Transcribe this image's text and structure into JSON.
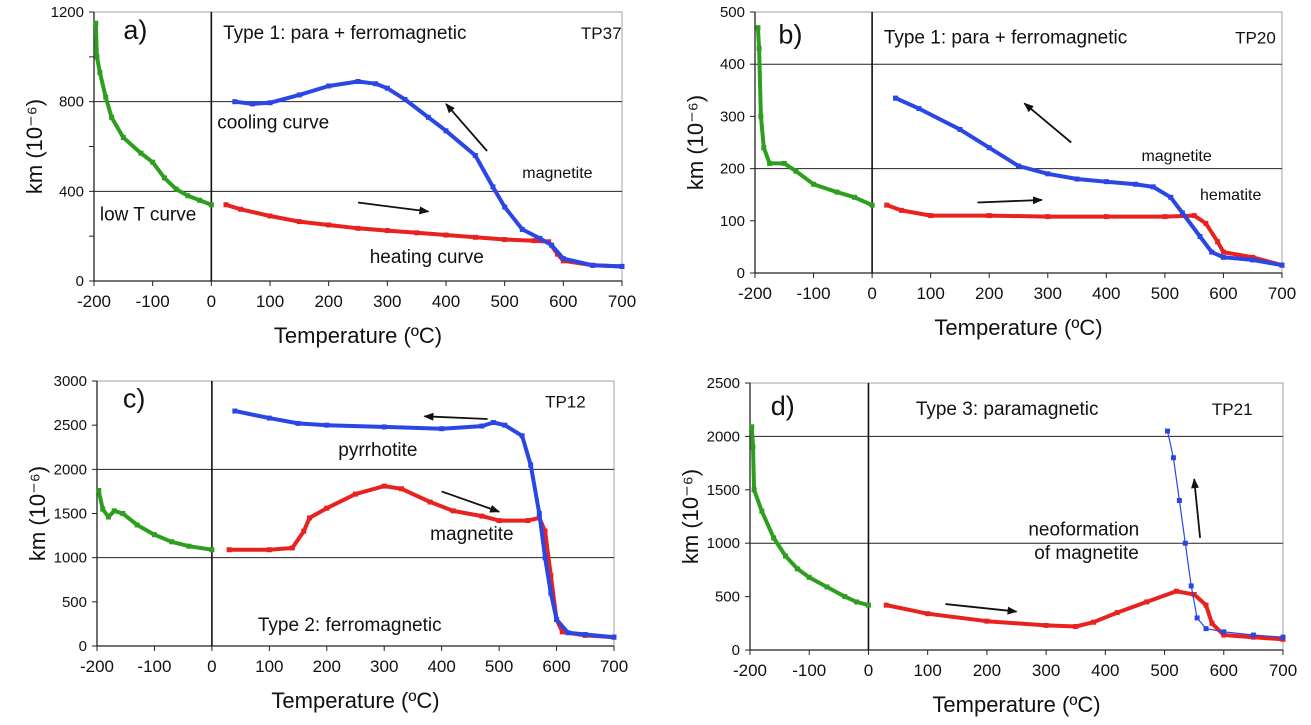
{
  "chart_data": [
    {
      "type": "line",
      "panel": "a)",
      "title": "Type 1: para + ferromagnetic",
      "sample": "TP37",
      "xlabel": "Temperature (ºC)",
      "ylabel": "km (10⁻⁶)",
      "xlim": [
        -200,
        700
      ],
      "ylim": [
        0,
        1200
      ],
      "xticks": [
        -200,
        -100,
        0,
        100,
        200,
        300,
        400,
        500,
        600,
        700
      ],
      "yticks": [
        0,
        400,
        800,
        1200
      ],
      "grid_y": [
        400,
        800
      ],
      "annotations": [
        "cooling curve",
        "magnetite",
        "low T curve",
        "heating curve"
      ],
      "colors": {
        "low_t": "#2e9e1e",
        "heating": "#e8231f",
        "cooling": "#2a47e6"
      },
      "series": [
        {
          "key": "low_t",
          "x": [
            -197,
            -195,
            -190,
            -180,
            -170,
            -150,
            -120,
            -100,
            -80,
            -60,
            -40,
            -20,
            0
          ],
          "y": [
            1150,
            1000,
            930,
            820,
            730,
            640,
            570,
            530,
            460,
            410,
            380,
            360,
            340
          ]
        },
        {
          "key": "heating",
          "x": [
            25,
            50,
            100,
            150,
            200,
            250,
            300,
            350,
            400,
            450,
            500,
            550,
            575,
            590,
            600,
            650,
            700
          ],
          "y": [
            340,
            320,
            290,
            265,
            250,
            235,
            225,
            215,
            205,
            195,
            185,
            180,
            175,
            120,
            90,
            70,
            65
          ]
        },
        {
          "key": "cooling",
          "x": [
            40,
            70,
            100,
            150,
            200,
            250,
            280,
            300,
            330,
            370,
            400,
            450,
            480,
            500,
            530,
            560,
            580,
            600,
            650,
            700
          ],
          "y": [
            800,
            790,
            795,
            830,
            870,
            890,
            880,
            860,
            810,
            730,
            670,
            560,
            420,
            330,
            230,
            190,
            160,
            100,
            70,
            65
          ]
        }
      ]
    },
    {
      "type": "line",
      "panel": "b)",
      "title": "Type 1: para + ferromagnetic",
      "sample": "TP20",
      "xlabel": "Temperature (ºC)",
      "ylabel": "km (10⁻⁶)",
      "xlim": [
        -200,
        700
      ],
      "ylim": [
        0,
        500
      ],
      "xticks": [
        -200,
        -100,
        0,
        100,
        200,
        300,
        400,
        500,
        600,
        700
      ],
      "yticks": [
        0,
        100,
        200,
        300,
        400,
        500
      ],
      "grid_y": [
        200,
        400
      ],
      "annotations": [
        "magnetite",
        "hematite"
      ],
      "colors": {
        "low_t": "#2e9e1e",
        "heating": "#e8231f",
        "cooling": "#2a47e6"
      },
      "series": [
        {
          "key": "low_t",
          "x": [
            -195,
            -193,
            -190,
            -185,
            -175,
            -150,
            -130,
            -100,
            -60,
            -30,
            0
          ],
          "y": [
            470,
            430,
            300,
            240,
            210,
            210,
            195,
            170,
            155,
            145,
            130
          ]
        },
        {
          "key": "heating",
          "x": [
            25,
            50,
            100,
            200,
            300,
            400,
            500,
            550,
            570,
            590,
            600,
            650,
            700
          ],
          "y": [
            130,
            120,
            110,
            110,
            108,
            108,
            108,
            110,
            95,
            60,
            40,
            30,
            15
          ]
        },
        {
          "key": "cooling",
          "x": [
            40,
            80,
            150,
            200,
            250,
            300,
            350,
            400,
            450,
            480,
            510,
            530,
            560,
            580,
            600,
            650,
            700
          ],
          "y": [
            335,
            315,
            275,
            240,
            205,
            190,
            180,
            175,
            170,
            165,
            145,
            115,
            70,
            40,
            30,
            25,
            15
          ]
        }
      ]
    },
    {
      "type": "line",
      "panel": "c)",
      "title": "Type 2: ferromagnetic",
      "sample": "TP12",
      "xlabel": "Temperature (ºC)",
      "ylabel": "km (10⁻⁶)",
      "xlim": [
        -200,
        700
      ],
      "ylim": [
        0,
        3000
      ],
      "xticks": [
        -200,
        -100,
        0,
        100,
        200,
        300,
        400,
        500,
        600,
        700
      ],
      "yticks": [
        0,
        500,
        1000,
        1500,
        2000,
        2500,
        3000
      ],
      "grid_y": [
        1000,
        2000
      ],
      "annotations": [
        "pyrrhotite",
        "magnetite"
      ],
      "colors": {
        "low_t": "#2e9e1e",
        "heating": "#e8231f",
        "cooling": "#2a47e6"
      },
      "series": [
        {
          "key": "low_t",
          "x": [
            -197,
            -190,
            -180,
            -170,
            -155,
            -130,
            -100,
            -70,
            -40,
            0
          ],
          "y": [
            1760,
            1550,
            1460,
            1530,
            1500,
            1370,
            1260,
            1180,
            1130,
            1090
          ]
        },
        {
          "key": "heating",
          "x": [
            30,
            100,
            140,
            160,
            170,
            200,
            250,
            300,
            330,
            380,
            420,
            470,
            500,
            550,
            570,
            580,
            590,
            600,
            610,
            650,
            700
          ],
          "y": [
            1090,
            1090,
            1110,
            1300,
            1450,
            1560,
            1720,
            1810,
            1780,
            1630,
            1530,
            1470,
            1420,
            1420,
            1450,
            1300,
            800,
            300,
            160,
            120,
            100
          ]
        },
        {
          "key": "cooling",
          "x": [
            40,
            100,
            150,
            200,
            300,
            400,
            470,
            490,
            510,
            540,
            555,
            570,
            580,
            590,
            600,
            620,
            650,
            700
          ],
          "y": [
            2660,
            2580,
            2520,
            2500,
            2480,
            2460,
            2490,
            2530,
            2500,
            2380,
            2050,
            1500,
            1000,
            600,
            300,
            150,
            130,
            100
          ]
        }
      ]
    },
    {
      "type": "line",
      "panel": "d)",
      "title": "Type 3: paramagnetic",
      "sample": "TP21",
      "xlabel": "Temperature (ºC)",
      "ylabel": "km (10⁻⁶)",
      "xlim": [
        -200,
        700
      ],
      "ylim": [
        0,
        2500
      ],
      "xticks": [
        -200,
        -100,
        0,
        100,
        200,
        300,
        400,
        500,
        600,
        700
      ],
      "yticks": [
        0,
        500,
        1000,
        1500,
        2000,
        2500
      ],
      "grid_y": [
        1000,
        2000
      ],
      "annotations": [
        "neoformation",
        "of magnetite"
      ],
      "colors": {
        "low_t": "#2e9e1e",
        "heating": "#e8231f",
        "cooling": "#2a47e6"
      },
      "series": [
        {
          "key": "low_t",
          "x": [
            -197,
            -195,
            -193,
            -180,
            -160,
            -140,
            -120,
            -100,
            -70,
            -40,
            -20,
            0
          ],
          "y": [
            2090,
            1900,
            1500,
            1300,
            1050,
            880,
            760,
            680,
            590,
            500,
            450,
            420
          ]
        },
        {
          "key": "heating",
          "x": [
            30,
            100,
            200,
            300,
            350,
            380,
            420,
            470,
            520,
            550,
            570,
            580,
            600,
            650,
            700
          ],
          "y": [
            420,
            340,
            270,
            230,
            220,
            260,
            350,
            450,
            550,
            520,
            420,
            250,
            140,
            120,
            100
          ]
        },
        {
          "key": "cooling",
          "x": [
            505,
            515,
            525,
            535,
            545,
            555,
            570,
            600,
            650,
            700
          ],
          "y": [
            2050,
            1800,
            1400,
            1000,
            600,
            300,
            200,
            170,
            140,
            120
          ]
        }
      ]
    }
  ]
}
